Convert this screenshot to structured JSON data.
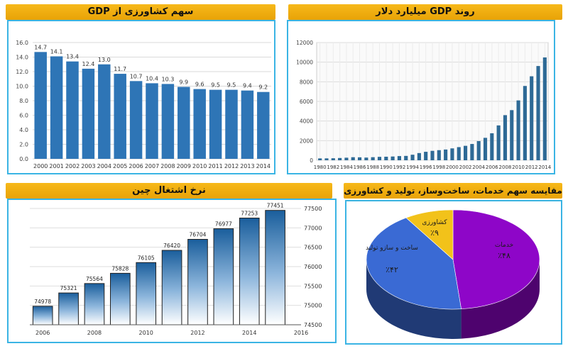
{
  "panels": {
    "agri_share": {
      "title": "سهم کشاورزی از GDP"
    },
    "gdp_trend": {
      "title": "روند GDP میلیارد دلار"
    },
    "employment": {
      "title": "نرخ اشتغال چین"
    },
    "sector_compare": {
      "title": "مقایسه سهم خدمات، ساخت‌وساز، تولید و کشاورزی از GDP"
    }
  },
  "chart_data": [
    {
      "id": "agri_share",
      "type": "bar",
      "categories": [
        "2000",
        "2001",
        "2002",
        "2003",
        "2004",
        "2005",
        "2006",
        "2007",
        "2008",
        "2009",
        "2010",
        "2011",
        "2012",
        "2013",
        "2014"
      ],
      "values": [
        14.7,
        14.1,
        13.4,
        12.4,
        13.0,
        11.7,
        10.7,
        10.4,
        10.3,
        9.9,
        9.6,
        9.5,
        9.5,
        9.4,
        9.2
      ],
      "value_labels": [
        "14.7",
        "14.1",
        "13.4",
        "12.4",
        "13.0",
        "11.7",
        "10.7",
        "10.4",
        "10.3",
        "9.9",
        "9.6",
        "9.5",
        "9.5",
        "9.4",
        "9.2"
      ],
      "ylim": [
        0,
        16
      ],
      "yticks": [
        "0.0",
        "2.0",
        "4.0",
        "6.0",
        "8.0",
        "10.0",
        "12.0",
        "14.0",
        "16.0"
      ],
      "grid": true,
      "color": "#2e75b6"
    },
    {
      "id": "gdp_trend",
      "type": "bar",
      "x": [
        1980,
        1981,
        1982,
        1983,
        1984,
        1985,
        1986,
        1987,
        1988,
        1989,
        1990,
        1991,
        1992,
        1993,
        1994,
        1995,
        1996,
        1997,
        1998,
        1999,
        2000,
        2001,
        2002,
        2003,
        2004,
        2005,
        2006,
        2007,
        2008,
        2009,
        2010,
        2011,
        2012,
        2013,
        2014
      ],
      "values": [
        190,
        195,
        205,
        230,
        260,
        310,
        300,
        272,
        312,
        348,
        360,
        383,
        427,
        444,
        564,
        734,
        863,
        961,
        1029,
        1094,
        1211,
        1339,
        1471,
        1660,
        1955,
        2286,
        2752,
        3552,
        4598,
        5110,
        6101,
        7573,
        8561,
        9607,
        10482
      ],
      "tick_labels": [
        "1980",
        "1982",
        "1984",
        "1986",
        "1988",
        "1990",
        "1992",
        "1994",
        "1996",
        "1998",
        "2000",
        "2002",
        "2004",
        "2006",
        "2008",
        "2010",
        "2012",
        "2014"
      ],
      "ylim": [
        0,
        12000
      ],
      "yticks": [
        "0",
        "2000",
        "4000",
        "6000",
        "8000",
        "10000",
        "12000"
      ],
      "grid": true,
      "color": "#2e6a96"
    },
    {
      "id": "employment",
      "type": "bar",
      "x": [
        2006,
        2007,
        2008,
        2009,
        2010,
        2011,
        2012,
        2013,
        2014,
        2015
      ],
      "values": [
        74978,
        75321,
        75564,
        75828,
        76105,
        76420,
        76704,
        76977,
        77253,
        77451
      ],
      "value_labels": [
        "74978",
        "75321",
        "75564",
        "75828",
        "76105",
        "76420",
        "76704",
        "76977",
        "77253",
        "77451"
      ],
      "ylim": [
        74500,
        77500
      ],
      "yticks": [
        "74500",
        "75000",
        "75500",
        "76000",
        "76500",
        "77000",
        "77500"
      ],
      "xticks": [
        "2006",
        "2008",
        "2010",
        "2012",
        "2014",
        "2016"
      ],
      "grid": true
    },
    {
      "id": "sector_compare",
      "type": "pie",
      "slices": [
        {
          "label": "خدمات",
          "value_label": "٪۴۸",
          "value": 48,
          "color": "#8e06c8"
        },
        {
          "label": "ساخت و سازو تولید",
          "value_label": "٪۴۲",
          "value": 42,
          "color": "#3a6ad4"
        },
        {
          "label": "کشاورزی",
          "value_label": "٪۹",
          "value": 9,
          "color": "#f2c21a"
        }
      ]
    }
  ]
}
